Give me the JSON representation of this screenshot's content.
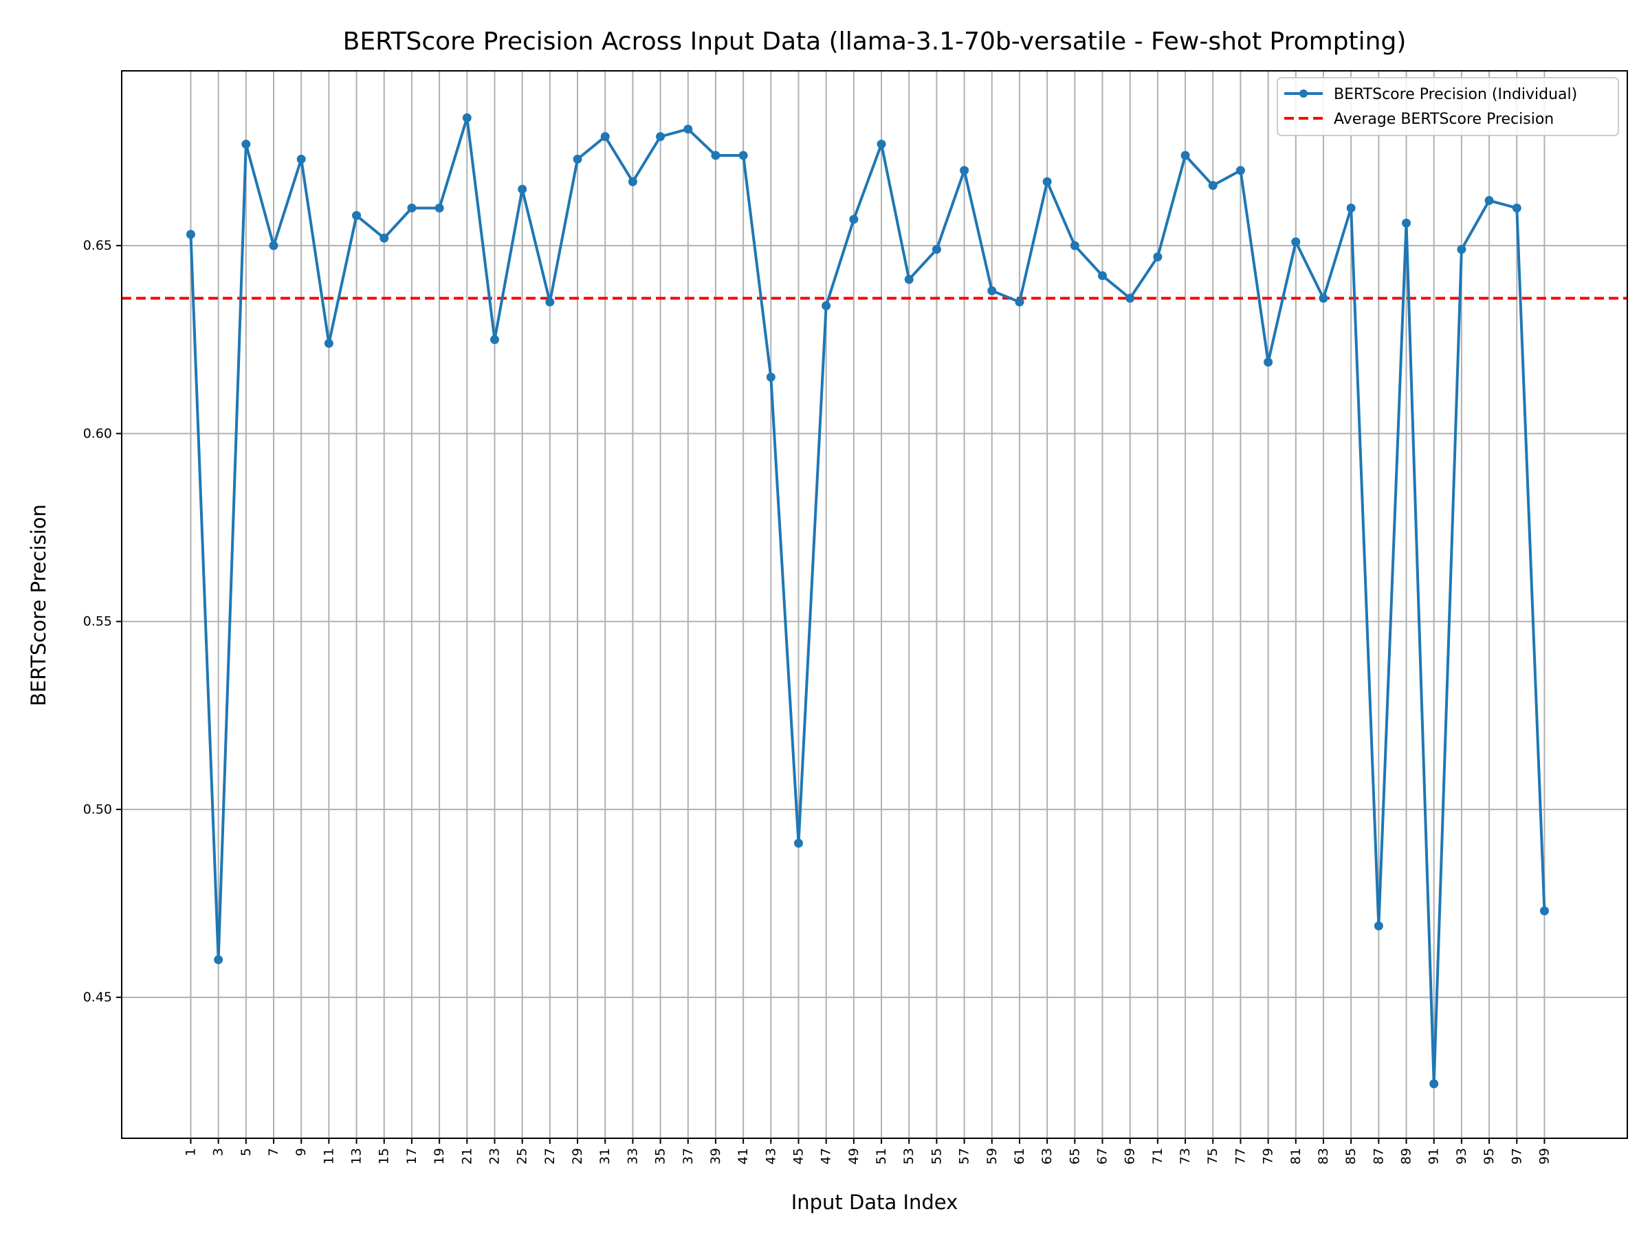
{
  "chart_data": {
    "type": "line",
    "title": "BERTScore Precision Across Input Data (llama-3.1-70b-versatile - Few-shot Prompting)",
    "xlabel": "Input Data Index",
    "ylabel": "BERTScore Precision",
    "x": [
      1,
      3,
      5,
      7,
      9,
      11,
      13,
      15,
      17,
      19,
      21,
      23,
      25,
      27,
      29,
      31,
      33,
      35,
      37,
      39,
      41,
      43,
      45,
      47,
      49,
      51,
      53,
      55,
      57,
      59,
      61,
      63,
      65,
      67,
      69,
      71,
      73,
      75,
      77,
      79,
      81,
      83,
      85,
      87,
      89,
      91,
      93,
      95,
      97,
      99
    ],
    "x_tick_labels": [
      "1",
      "3",
      "5",
      "7",
      "9",
      "11",
      "13",
      "15",
      "17",
      "19",
      "21",
      "23",
      "25",
      "27",
      "29",
      "31",
      "33",
      "35",
      "37",
      "39",
      "41",
      "43",
      "45",
      "47",
      "49",
      "51",
      "53",
      "55",
      "57",
      "59",
      "61",
      "63",
      "65",
      "67",
      "69",
      "71",
      "73",
      "75",
      "77",
      "79",
      "81",
      "83",
      "85",
      "87",
      "89",
      "91",
      "93",
      "95",
      "97",
      "99"
    ],
    "xlim": [
      -4,
      105
    ],
    "ylim": [
      0.4125,
      0.6965
    ],
    "y_ticks": [
      0.45,
      0.5,
      0.55,
      0.6,
      0.65
    ],
    "y_tick_labels": [
      "0.45",
      "0.50",
      "0.55",
      "0.60",
      "0.65"
    ],
    "grid": true,
    "legend_position": "top-right",
    "series": [
      {
        "name": "BERTScore Precision (Individual)",
        "color": "#1f77b4",
        "style": "solid-with-markers",
        "values": [
          0.653,
          0.46,
          0.677,
          0.65,
          0.673,
          0.624,
          0.658,
          0.652,
          0.66,
          0.66,
          0.684,
          0.625,
          0.665,
          0.635,
          0.673,
          0.679,
          0.667,
          0.679,
          0.681,
          0.674,
          0.674,
          0.615,
          0.491,
          0.634,
          0.657,
          0.677,
          0.641,
          0.649,
          0.67,
          0.638,
          0.635,
          0.667,
          0.65,
          0.642,
          0.636,
          0.647,
          0.674,
          0.666,
          0.67,
          0.619,
          0.651,
          0.636,
          0.66,
          0.469,
          0.656,
          0.427,
          0.649,
          0.662,
          0.66,
          0.473
        ]
      },
      {
        "name": "Average BERTScore Precision",
        "color": "#ff0000",
        "style": "dashed",
        "value": 0.636
      }
    ]
  }
}
